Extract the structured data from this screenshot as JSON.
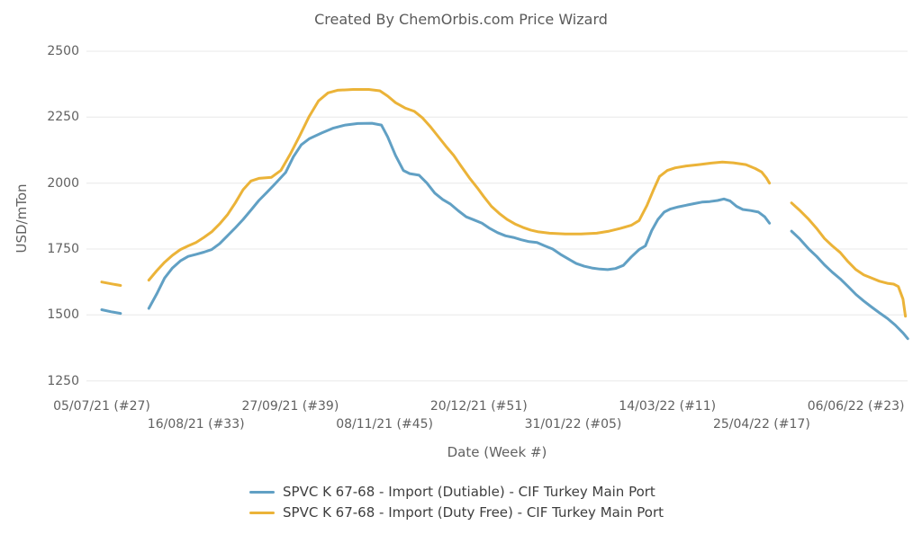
{
  "title": "Created By ChemOrbis.com Price Wizard",
  "chart_data": {
    "type": "line",
    "title": "Created By ChemOrbis.com Price Wizard",
    "ylabel": "USD/mTon",
    "xlabel": "Date (Week #)",
    "ylim": [
      1250,
      2500
    ],
    "y_ticks": [
      2500,
      2250,
      2000,
      1750,
      1500,
      1250
    ],
    "grid": "horizontal",
    "legend_position": "bottom",
    "x_unit": "weeks since 05/07/21 (week #27); gaps = missing weeks",
    "x_ticks": [
      {
        "week": 0,
        "label": "05/07/21 (#27)",
        "row": 1
      },
      {
        "week": 6,
        "label": "16/08/21 (#33)",
        "row": 2
      },
      {
        "week": 12,
        "label": "27/09/21 (#39)",
        "row": 1
      },
      {
        "week": 18,
        "label": "08/11/21 (#45)",
        "row": 2
      },
      {
        "week": 24,
        "label": "20/12/21 (#51)",
        "row": 1
      },
      {
        "week": 30,
        "label": "31/01/22 (#05)",
        "row": 2
      },
      {
        "week": 36,
        "label": "14/03/22 (#11)",
        "row": 1
      },
      {
        "week": 42,
        "label": "25/04/22 (#17)",
        "row": 2
      },
      {
        "week": 48,
        "label": "06/06/22 (#23)",
        "row": 1
      }
    ],
    "series": [
      {
        "name": "SPVC K 67-68 - Import (Dutiable) - CIF Turkey Main Port",
        "color": "#61A0C4",
        "segments": [
          [
            [
              0,
              1520
            ],
            [
              0.6,
              1512
            ],
            [
              1.2,
              1506
            ]
          ],
          [
            [
              3,
              1525
            ],
            [
              3.5,
              1580
            ],
            [
              4,
              1640
            ],
            [
              4.5,
              1678
            ],
            [
              5,
              1705
            ],
            [
              5.5,
              1722
            ],
            [
              6,
              1730
            ],
            [
              6.5,
              1738
            ],
            [
              7,
              1748
            ],
            [
              7.5,
              1770
            ],
            [
              8,
              1800
            ],
            [
              8.5,
              1830
            ],
            [
              9,
              1862
            ],
            [
              9.5,
              1898
            ],
            [
              10,
              1934
            ],
            [
              10.5,
              1964
            ],
            [
              11,
              1995
            ],
            [
              11.7,
              2040
            ],
            [
              12.2,
              2100
            ],
            [
              12.7,
              2145
            ],
            [
              13.2,
              2168
            ],
            [
              14,
              2190
            ],
            [
              14.7,
              2208
            ],
            [
              15.5,
              2220
            ],
            [
              16.3,
              2226
            ],
            [
              17.2,
              2227
            ],
            [
              17.8,
              2220
            ],
            [
              18.2,
              2175
            ],
            [
              18.7,
              2105
            ],
            [
              19.2,
              2048
            ],
            [
              19.6,
              2036
            ],
            [
              20.2,
              2030
            ],
            [
              20.7,
              2000
            ],
            [
              21.2,
              1962
            ],
            [
              21.7,
              1938
            ],
            [
              22.2,
              1920
            ],
            [
              22.7,
              1895
            ],
            [
              23.2,
              1872
            ],
            [
              23.7,
              1860
            ],
            [
              24.2,
              1848
            ],
            [
              24.7,
              1828
            ],
            [
              25.2,
              1812
            ],
            [
              25.7,
              1800
            ],
            [
              26.2,
              1794
            ],
            [
              26.7,
              1785
            ],
            [
              27.2,
              1778
            ],
            [
              27.7,
              1775
            ],
            [
              28.2,
              1762
            ],
            [
              28.7,
              1750
            ],
            [
              29.2,
              1730
            ],
            [
              29.7,
              1712
            ],
            [
              30.2,
              1695
            ],
            [
              30.7,
              1685
            ],
            [
              31.2,
              1678
            ],
            [
              31.7,
              1674
            ],
            [
              32.2,
              1672
            ],
            [
              32.7,
              1676
            ],
            [
              33.2,
              1688
            ],
            [
              33.7,
              1720
            ],
            [
              34.2,
              1748
            ],
            [
              34.6,
              1762
            ],
            [
              35,
              1820
            ],
            [
              35.4,
              1862
            ],
            [
              35.8,
              1890
            ],
            [
              36.2,
              1902
            ],
            [
              36.7,
              1910
            ],
            [
              37.2,
              1916
            ],
            [
              37.7,
              1922
            ],
            [
              38.2,
              1928
            ],
            [
              38.7,
              1930
            ],
            [
              39.2,
              1934
            ],
            [
              39.6,
              1940
            ],
            [
              40,
              1932
            ],
            [
              40.4,
              1912
            ],
            [
              40.8,
              1900
            ],
            [
              41.3,
              1896
            ],
            [
              41.8,
              1890
            ],
            [
              42.2,
              1872
            ],
            [
              42.5,
              1848
            ]
          ],
          [
            [
              43.9,
              1818
            ],
            [
              44.4,
              1790
            ],
            [
              45,
              1750
            ],
            [
              45.5,
              1722
            ],
            [
              46,
              1690
            ],
            [
              46.5,
              1662
            ],
            [
              47,
              1637
            ],
            [
              47.5,
              1608
            ],
            [
              48,
              1578
            ],
            [
              48.5,
              1553
            ],
            [
              49,
              1530
            ],
            [
              49.5,
              1508
            ],
            [
              50,
              1487
            ],
            [
              50.5,
              1462
            ],
            [
              51,
              1432
            ],
            [
              51.3,
              1410
            ]
          ]
        ]
      },
      {
        "name": "SPVC K 67-68 - Import (Duty Free) - CIF Turkey Main Port",
        "color": "#EBB338",
        "segments": [
          [
            [
              0,
              1625
            ],
            [
              0.6,
              1618
            ],
            [
              1.2,
              1612
            ]
          ],
          [
            [
              3,
              1632
            ],
            [
              3.5,
              1668
            ],
            [
              4,
              1700
            ],
            [
              4.5,
              1726
            ],
            [
              5,
              1748
            ],
            [
              5.5,
              1762
            ],
            [
              6,
              1775
            ],
            [
              6.5,
              1794
            ],
            [
              7,
              1815
            ],
            [
              7.5,
              1845
            ],
            [
              8,
              1880
            ],
            [
              8.5,
              1925
            ],
            [
              9,
              1975
            ],
            [
              9.5,
              2008
            ],
            [
              10,
              2018
            ],
            [
              10.8,
              2022
            ],
            [
              11.4,
              2048
            ],
            [
              12,
              2110
            ],
            [
              12.6,
              2180
            ],
            [
              13.2,
              2252
            ],
            [
              13.8,
              2312
            ],
            [
              14.4,
              2342
            ],
            [
              15,
              2352
            ],
            [
              16,
              2355
            ],
            [
              17,
              2355
            ],
            [
              17.7,
              2350
            ],
            [
              18.2,
              2330
            ],
            [
              18.7,
              2305
            ],
            [
              19.3,
              2285
            ],
            [
              19.9,
              2272
            ],
            [
              20.4,
              2248
            ],
            [
              20.9,
              2215
            ],
            [
              21.4,
              2178
            ],
            [
              21.9,
              2140
            ],
            [
              22.4,
              2105
            ],
            [
              22.9,
              2062
            ],
            [
              23.4,
              2020
            ],
            [
              23.9,
              1982
            ],
            [
              24.3,
              1950
            ],
            [
              24.8,
              1912
            ],
            [
              25.3,
              1885
            ],
            [
              25.8,
              1862
            ],
            [
              26.3,
              1845
            ],
            [
              26.8,
              1832
            ],
            [
              27.3,
              1822
            ],
            [
              27.8,
              1815
            ],
            [
              28.5,
              1810
            ],
            [
              29.5,
              1807
            ],
            [
              30.5,
              1807
            ],
            [
              31.5,
              1810
            ],
            [
              32.3,
              1818
            ],
            [
              33,
              1828
            ],
            [
              33.7,
              1840
            ],
            [
              34.2,
              1858
            ],
            [
              34.7,
              1915
            ],
            [
              35.1,
              1972
            ],
            [
              35.5,
              2025
            ],
            [
              36,
              2048
            ],
            [
              36.5,
              2058
            ],
            [
              37.2,
              2065
            ],
            [
              38,
              2070
            ],
            [
              38.8,
              2076
            ],
            [
              39.5,
              2080
            ],
            [
              40.2,
              2077
            ],
            [
              41,
              2070
            ],
            [
              41.6,
              2055
            ],
            [
              42,
              2042
            ],
            [
              42.3,
              2020
            ],
            [
              42.5,
              2000
            ]
          ],
          [
            [
              43.9,
              1925
            ],
            [
              44.4,
              1898
            ],
            [
              45,
              1862
            ],
            [
              45.5,
              1828
            ],
            [
              46,
              1790
            ],
            [
              46.5,
              1762
            ],
            [
              47,
              1737
            ],
            [
              47.5,
              1702
            ],
            [
              48,
              1672
            ],
            [
              48.5,
              1652
            ],
            [
              49,
              1640
            ],
            [
              49.5,
              1628
            ],
            [
              50,
              1620
            ],
            [
              50.4,
              1617
            ],
            [
              50.7,
              1608
            ],
            [
              51,
              1560
            ],
            [
              51.15,
              1495
            ]
          ]
        ]
      }
    ]
  },
  "legend": {
    "items": [
      {
        "label": "SPVC K 67-68 - Import (Dutiable) - CIF Turkey Main Port"
      },
      {
        "label": "SPVC K 67-68 - Import (Duty Free) - CIF Turkey Main Port"
      }
    ]
  }
}
